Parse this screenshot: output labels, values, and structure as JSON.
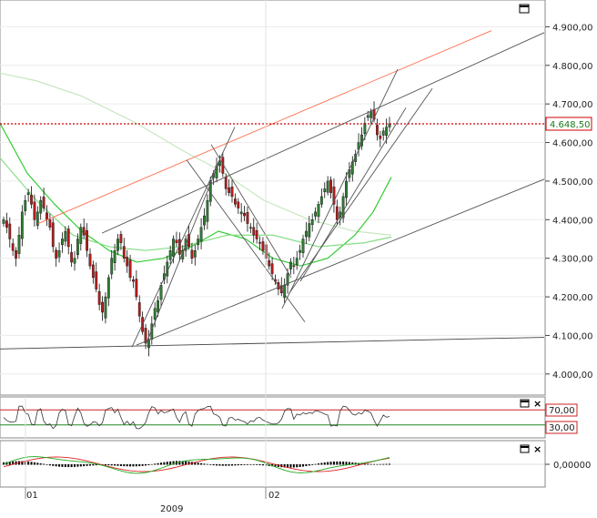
{
  "chart_data": [
    {
      "type": "candlestick",
      "panel": "price",
      "ylim": [
        3950,
        4960
      ],
      "y_ticks": [
        "4.900,00",
        "4.800,00",
        "4.700,00",
        "4.600,00",
        "4.500,00",
        "4.400,00",
        "4.300,00",
        "4.200,00",
        "4.100,00",
        "4.000,00"
      ],
      "y_tick_values": [
        4900,
        4800,
        4700,
        4600,
        4500,
        4400,
        4300,
        4200,
        4100,
        4000
      ],
      "last_price_label": "4.648,50",
      "last_price": 4648.5,
      "grid": true,
      "colors": {
        "up": "#2e7d32",
        "down": "#b71c1c",
        "wick": "#111111",
        "last_line": "#cc0000",
        "label_text": "#1a7a1a"
      },
      "closes": [
        4400,
        4380,
        4350,
        4320,
        4300,
        4360,
        4420,
        4450,
        4470,
        4440,
        4400,
        4420,
        4450,
        4430,
        4400,
        4380,
        4330,
        4300,
        4320,
        4350,
        4370,
        4330,
        4290,
        4300,
        4350,
        4380,
        4360,
        4320,
        4280,
        4250,
        4220,
        4180,
        4160,
        4200,
        4250,
        4300,
        4320,
        4350,
        4340,
        4300,
        4280,
        4250,
        4240,
        4200,
        4150,
        4110,
        4080,
        4090,
        4130,
        4170,
        4190,
        4230,
        4260,
        4290,
        4320,
        4350,
        4340,
        4310,
        4320,
        4350,
        4330,
        4300,
        4320,
        4350,
        4380,
        4410,
        4450,
        4500,
        4520,
        4540,
        4550,
        4520,
        4480,
        4470,
        4460,
        4440,
        4430,
        4420,
        4410,
        4390,
        4380,
        4360,
        4350,
        4340,
        4320,
        4300,
        4280,
        4260,
        4240,
        4220,
        4210,
        4230,
        4260,
        4290,
        4280,
        4300,
        4320,
        4350,
        4370,
        4390,
        4400,
        4420,
        4440,
        4460,
        4480,
        4500,
        4470,
        4440,
        4400,
        4420,
        4460,
        4500,
        4530,
        4550,
        4570,
        4600,
        4620,
        4650,
        4670,
        4680,
        4660,
        4620,
        4610,
        4630,
        4640,
        4648.5
      ],
      "lines": [
        {
          "name": "fib-fan-top",
          "color": "#ff7050",
          "from": [
            42,
            4390
          ],
          "to": [
            540,
            4890
          ]
        },
        {
          "name": "upper-channel",
          "color": "#555555",
          "from": [
            112,
            4365
          ],
          "to": [
            598,
            4885
          ]
        },
        {
          "name": "lower-channel",
          "color": "#555555",
          "from": [
            150,
            4075
          ],
          "to": [
            598,
            4505
          ]
        },
        {
          "name": "support-flat",
          "color": "#444444",
          "from": [
            0,
            4065
          ],
          "to": [
            598,
            4095
          ]
        },
        {
          "name": "trend-a",
          "color": "#555555",
          "from": [
            145,
            4070
          ],
          "to": [
            258,
            4640
          ]
        },
        {
          "name": "trend-b",
          "color": "#555555",
          "from": [
            160,
            4075
          ],
          "to": [
            240,
            4545
          ]
        },
        {
          "name": "trend-c",
          "color": "#555555",
          "from": [
            205,
            4555
          ],
          "to": [
            335,
            4135
          ]
        },
        {
          "name": "trend-d",
          "color": "#555555",
          "from": [
            232,
            4595
          ],
          "to": [
            320,
            4250
          ]
        },
        {
          "name": "trend-e",
          "color": "#555555",
          "from": [
            310,
            4170
          ],
          "to": [
            437,
            4790
          ]
        },
        {
          "name": "trend-f",
          "color": "#555555",
          "from": [
            318,
            4210
          ],
          "to": [
            475,
            4740
          ]
        },
        {
          "name": "trend-g",
          "color": "#555555",
          "from": [
            330,
            4240
          ],
          "to": [
            446,
            4690
          ]
        }
      ],
      "moving_averages": [
        {
          "name": "ma-long",
          "color": "#c8e6c0",
          "points": [
            [
              0,
              4780
            ],
            [
              40,
              4760
            ],
            [
              90,
              4720
            ],
            [
              150,
              4650
            ],
            [
              200,
              4580
            ],
            [
              240,
              4530
            ],
            [
              290,
              4450
            ],
            [
              340,
              4400
            ],
            [
              390,
              4370
            ],
            [
              430,
              4360
            ]
          ]
        },
        {
          "name": "ma-short",
          "color": "#33cc33",
          "points": [
            [
              0,
              4650
            ],
            [
              30,
              4520
            ],
            [
              60,
              4440
            ],
            [
              90,
              4370
            ],
            [
              120,
              4320
            ],
            [
              150,
              4290
            ],
            [
              180,
              4300
            ],
            [
              210,
              4330
            ],
            [
              240,
              4370
            ],
            [
              270,
              4350
            ],
            [
              300,
              4300
            ],
            [
              330,
              4280
            ],
            [
              360,
              4300
            ],
            [
              390,
              4360
            ],
            [
              410,
              4420
            ],
            [
              430,
              4510
            ]
          ]
        },
        {
          "name": "ma-mid",
          "color": "#88dd88",
          "points": [
            [
              0,
              4560
            ],
            [
              40,
              4450
            ],
            [
              80,
              4360
            ],
            [
              120,
              4330
            ],
            [
              160,
              4320
            ],
            [
              200,
              4330
            ],
            [
              250,
              4360
            ],
            [
              300,
              4360
            ],
            [
              350,
              4330
            ],
            [
              400,
              4340
            ],
            [
              430,
              4355
            ]
          ]
        }
      ]
    },
    {
      "type": "line",
      "panel": "rsi",
      "levels": [
        {
          "label": "70,00",
          "value": 70,
          "color": "#cc2222"
        },
        {
          "label": "30,00",
          "value": 30,
          "color": "#228822"
        }
      ],
      "ylim": [
        0,
        100
      ]
    },
    {
      "type": "histogram+line",
      "panel": "macd",
      "y_ticks": [
        "0,00000"
      ],
      "y_tick_values": [
        0
      ]
    },
    {
      "type": "x-axis",
      "x_ticks": [
        "01",
        "02"
      ],
      "year_label": "2009"
    }
  ]
}
